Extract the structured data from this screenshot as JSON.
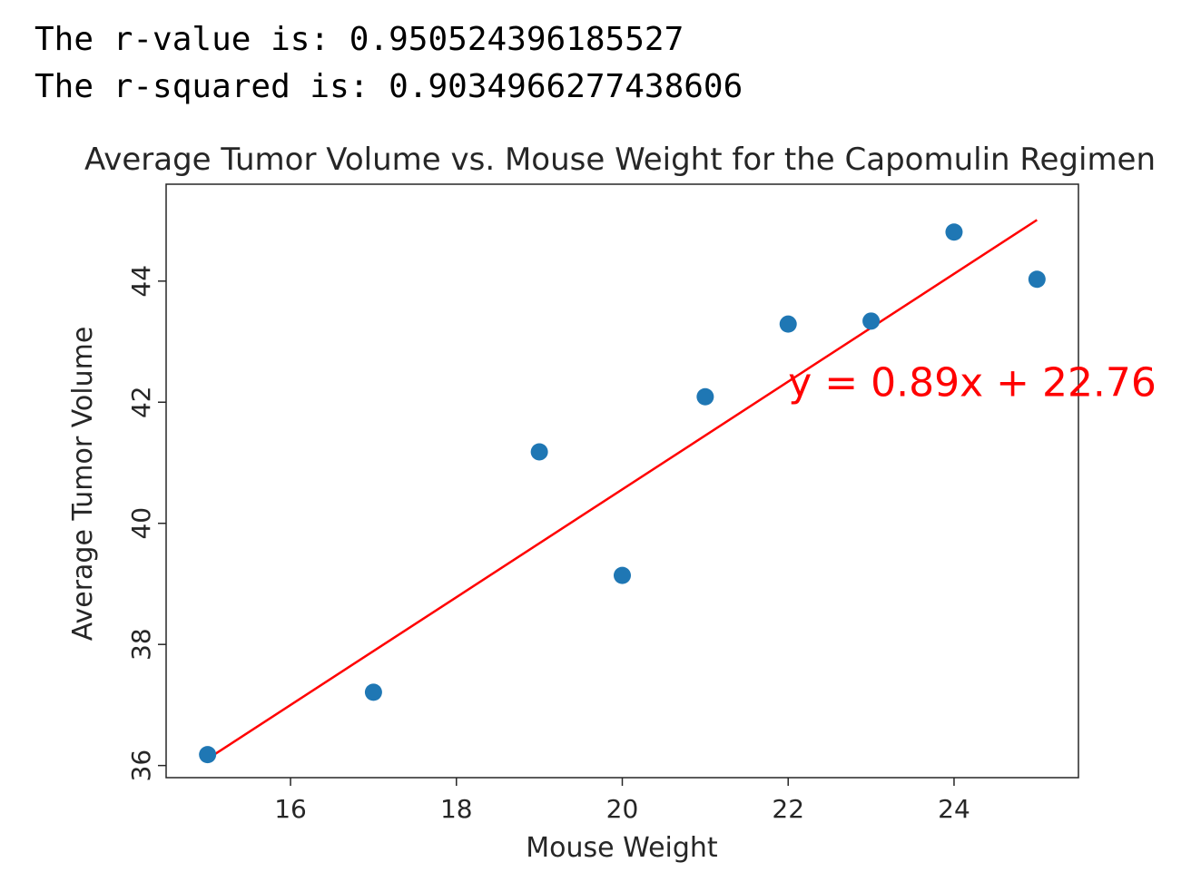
{
  "output": {
    "r_value_line": "The r-value is: 0.950524396185527",
    "r_squared_line": "The r-squared is: 0.9034966277438606"
  },
  "chart_data": {
    "type": "scatter",
    "title": "Average Tumor Volume vs. Mouse Weight for the Capomulin Regimen",
    "xlabel": "Mouse Weight",
    "ylabel": "Average Tumor Volume",
    "xlim": [
      14.5,
      25.5
    ],
    "ylim": [
      35.8,
      45.6
    ],
    "xticks": [
      16,
      18,
      20,
      22,
      24
    ],
    "yticks": [
      36,
      38,
      40,
      42,
      44
    ],
    "grid": false,
    "series": [
      {
        "x": [
          15,
          17,
          19,
          20,
          21,
          22,
          23,
          24,
          25
        ],
        "y": [
          36.18,
          37.21,
          41.18,
          39.14,
          42.09,
          43.29,
          43.34,
          44.81,
          44.03
        ]
      }
    ],
    "regression": {
      "slope": 0.89,
      "intercept": 22.76,
      "x_range": [
        15,
        25
      ],
      "equation_label": "y = 0.89x + 22.76",
      "label_anchor": [
        22,
        42.1
      ]
    },
    "colors": {
      "points": "#1f77b4",
      "line": "#ff0000",
      "annotation": "#ff0000",
      "text": "#262626",
      "axes": "#262626"
    }
  }
}
